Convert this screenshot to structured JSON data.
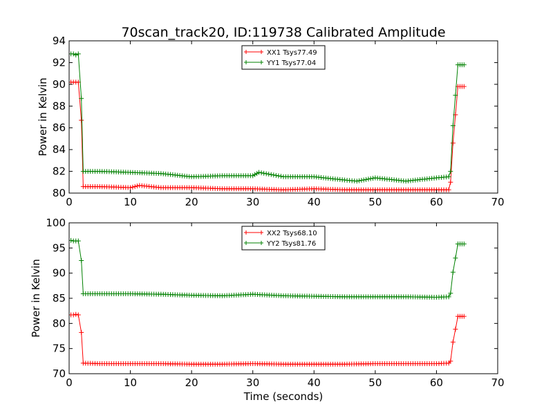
{
  "chart_data": [
    {
      "type": "line",
      "title": "70scan_track20, ID:119738 Calibrated Amplitude",
      "xlabel": "",
      "ylabel": "Power in Kelvin",
      "xlim": [
        0,
        70
      ],
      "ylim": [
        80,
        94
      ],
      "xticks": [
        0,
        10,
        20,
        30,
        40,
        50,
        60,
        70
      ],
      "yticks": [
        80,
        82,
        84,
        86,
        88,
        90,
        92,
        94
      ],
      "xtick_labels": [
        "0",
        "10",
        "20",
        "30",
        "40",
        "50",
        "60",
        "70"
      ],
      "ytick_labels": [
        "80",
        "82",
        "84",
        "86",
        "88",
        "90",
        "92",
        "94"
      ],
      "legend_position": "top-center",
      "marker": "+",
      "grid": false,
      "series": [
        {
          "name": "XX1 Tsys77.49",
          "color": "#ff0000",
          "x": [
            0.3,
            0.7,
            1.1,
            1.5,
            2.0,
            2.3,
            5,
            10,
            11.5,
            15,
            20,
            25,
            30,
            35,
            40,
            45,
            50,
            55,
            60,
            62.0,
            62.3,
            62.7,
            63.5,
            64.5
          ],
          "y": [
            90.2,
            90.2,
            90.2,
            90.2,
            86.7,
            80.6,
            80.6,
            80.5,
            80.7,
            80.5,
            80.5,
            80.4,
            80.4,
            80.3,
            80.4,
            80.3,
            80.3,
            80.3,
            80.3,
            80.3,
            81.0,
            84.6,
            89.8,
            89.8
          ]
        },
        {
          "name": "YY1 Tsys77.04",
          "color": "#008000",
          "x": [
            0.3,
            0.7,
            1.1,
            1.5,
            2.0,
            2.3,
            5,
            10,
            15,
            20,
            25,
            30,
            31,
            35,
            40,
            45,
            47,
            50,
            55,
            60,
            62.0,
            62.3,
            62.7,
            63.5,
            64.5
          ],
          "y": [
            92.8,
            92.8,
            92.7,
            92.8,
            88.7,
            82.0,
            82.0,
            81.9,
            81.8,
            81.5,
            81.6,
            81.6,
            81.9,
            81.5,
            81.5,
            81.2,
            81.1,
            81.4,
            81.1,
            81.4,
            81.5,
            82.0,
            86.2,
            91.8,
            91.8
          ]
        }
      ]
    },
    {
      "type": "line",
      "title": "",
      "xlabel": "Time (seconds)",
      "ylabel": "Power in Kelvin",
      "xlim": [
        0,
        70
      ],
      "ylim": [
        70,
        100
      ],
      "xticks": [
        0,
        10,
        20,
        30,
        40,
        50,
        60,
        70
      ],
      "yticks": [
        70,
        75,
        80,
        85,
        90,
        95,
        100
      ],
      "xtick_labels": [
        "0",
        "10",
        "20",
        "30",
        "40",
        "50",
        "60",
        "70"
      ],
      "ytick_labels": [
        "70",
        "75",
        "80",
        "85",
        "90",
        "95",
        "100"
      ],
      "legend_position": "top-center",
      "marker": "+",
      "grid": false,
      "series": [
        {
          "name": "XX2 Tsys68.10",
          "color": "#ff0000",
          "x": [
            0.3,
            0.7,
            1.1,
            1.5,
            2.0,
            2.3,
            5,
            10,
            15,
            20,
            25,
            30,
            35,
            40,
            45,
            50,
            55,
            60,
            62.0,
            62.3,
            62.7,
            63.5,
            64.5
          ],
          "y": [
            81.7,
            81.7,
            81.8,
            81.7,
            78.2,
            72.1,
            72.0,
            72.0,
            72.0,
            71.9,
            71.9,
            72.0,
            71.9,
            71.9,
            71.9,
            72.0,
            72.0,
            72.0,
            72.1,
            72.5,
            76.3,
            81.4,
            81.4
          ]
        },
        {
          "name": "YY2 Tsys81.76",
          "color": "#008000",
          "x": [
            0.3,
            0.7,
            1.1,
            1.5,
            2.0,
            2.3,
            5,
            10,
            15,
            20,
            25,
            30,
            35,
            40,
            45,
            50,
            55,
            60,
            62.0,
            62.3,
            62.7,
            63.5,
            64.5
          ],
          "y": [
            96.5,
            96.4,
            96.4,
            96.4,
            92.5,
            85.9,
            85.9,
            85.9,
            85.8,
            85.6,
            85.5,
            85.8,
            85.5,
            85.4,
            85.3,
            85.3,
            85.3,
            85.2,
            85.3,
            86.0,
            90.2,
            95.8,
            95.8
          ]
        }
      ]
    }
  ]
}
